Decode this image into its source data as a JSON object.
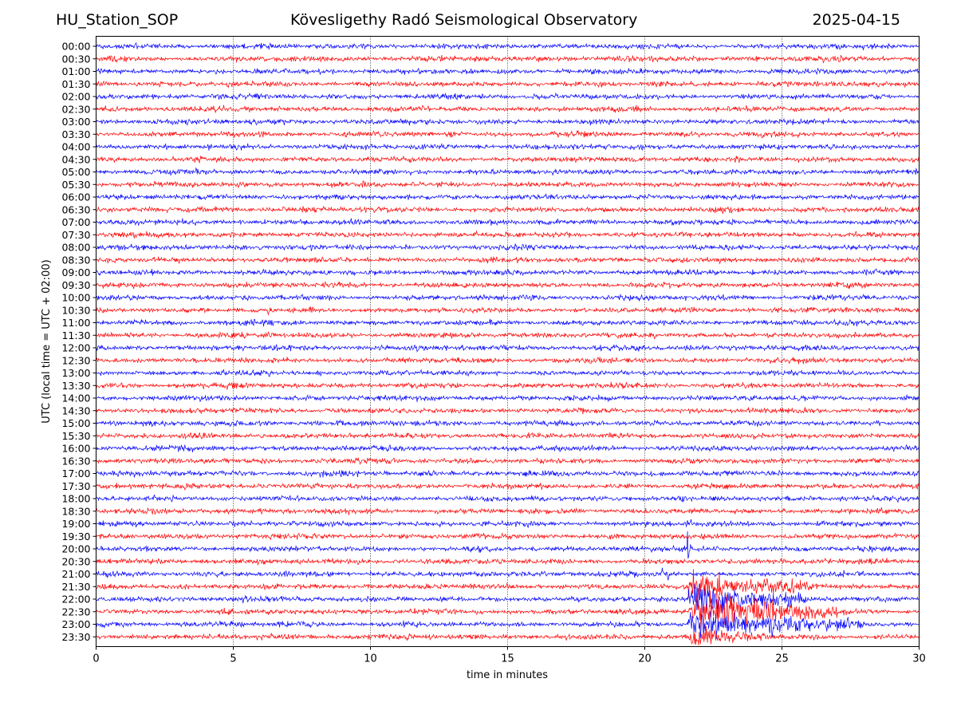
{
  "header": {
    "station": "HU_Station_SOP",
    "observatory": "Kövesligethy Radó Seismological Observatory",
    "date": "2025-04-15"
  },
  "chart_data": {
    "type": "line",
    "title": "Kövesligethy Radó Seismological Observatory",
    "xlabel": "time in minutes",
    "ylabel": "UTC (local time = UTC + 02:00)",
    "xlim": [
      0,
      30
    ],
    "x_ticks": [
      0,
      5,
      10,
      15,
      20,
      25,
      30
    ],
    "grid": "vertical dotted at each x tick",
    "line_labels": [
      "00:00",
      "00:30",
      "01:00",
      "01:30",
      "02:00",
      "02:30",
      "03:00",
      "03:30",
      "04:00",
      "04:30",
      "05:00",
      "05:30",
      "06:00",
      "06:30",
      "07:00",
      "07:30",
      "08:00",
      "08:30",
      "09:00",
      "09:30",
      "10:00",
      "10:30",
      "11:00",
      "11:30",
      "12:00",
      "12:30",
      "13:00",
      "13:30",
      "14:00",
      "14:30",
      "15:00",
      "15:30",
      "16:00",
      "16:30",
      "17:00",
      "17:30",
      "18:00",
      "18:30",
      "19:00",
      "19:30",
      "20:00",
      "20:30",
      "21:00",
      "21:30",
      "22:00",
      "22:30",
      "23:00",
      "23:30"
    ],
    "colors": [
      "#0000ff",
      "#ff0000"
    ],
    "events": [
      {
        "line": "19:00",
        "start_min": 21.5,
        "end_min": 21.7,
        "relative_amplitude": 0.6
      },
      {
        "line": "20:00",
        "start_min": 21.55,
        "end_min": 21.7,
        "relative_amplitude": 2.0
      },
      {
        "line": "21:00",
        "start_min": 20.6,
        "end_min": 20.9,
        "relative_amplitude": 0.6
      },
      {
        "line": "21:30",
        "start_min": 21.6,
        "end_min": 26.0,
        "relative_amplitude": 1.5
      },
      {
        "line": "22:00",
        "start_min": 21.6,
        "end_min": 26.0,
        "relative_amplitude": 2.0
      },
      {
        "line": "22:30",
        "start_min": 21.6,
        "end_min": 27.0,
        "relative_amplitude": 2.5
      },
      {
        "line": "23:00",
        "start_min": 21.6,
        "end_min": 28.0,
        "relative_amplitude": 1.6
      },
      {
        "line": "23:30",
        "start_min": 21.6,
        "end_min": 24.5,
        "relative_amplitude": 0.8
      }
    ]
  }
}
